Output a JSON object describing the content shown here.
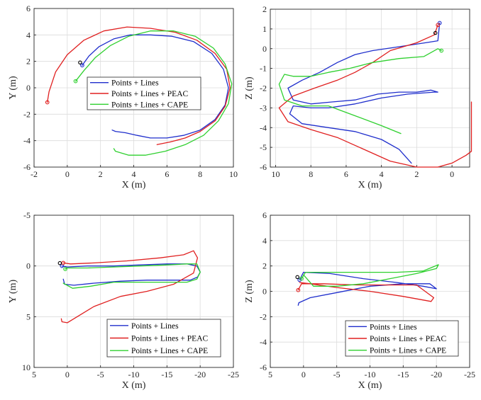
{
  "colors": {
    "blue": "#1f2ecc",
    "red": "#e02020",
    "green": "#2fd02f",
    "black": "#000000"
  },
  "chart_data": [
    {
      "type": "line",
      "id": "top-left",
      "xlabel": "X (m)",
      "ylabel": "Y (m)",
      "xlim": [
        -2,
        10
      ],
      "ylim": [
        -6,
        6
      ],
      "xticks": [
        -2,
        0,
        2,
        4,
        6,
        8,
        10
      ],
      "yticks": [
        -6,
        -4,
        -2,
        0,
        2,
        4,
        6
      ],
      "x_reversed": false,
      "y_reversed": false,
      "grid": true,
      "legend": "center",
      "series": [
        {
          "name": "Points + Lines",
          "color": "#1f2ecc",
          "x": [
            0.9,
            1.3,
            1.9,
            2.8,
            3.8,
            5.0,
            6.3,
            7.6,
            8.7,
            9.4,
            9.7,
            9.5,
            8.9,
            8.0,
            7.0,
            6.0,
            5.0,
            4.2,
            3.5,
            2.9,
            2.7
          ],
          "y": [
            1.7,
            2.4,
            3.1,
            3.7,
            4.0,
            4.0,
            3.9,
            3.5,
            2.6,
            1.4,
            0.0,
            -1.3,
            -2.4,
            -3.2,
            -3.6,
            -3.8,
            -3.8,
            -3.6,
            -3.4,
            -3.3,
            -3.2
          ]
        },
        {
          "name": "Points + Lines + PEAC",
          "color": "#e02020",
          "x": [
            -1.2,
            -1.1,
            -0.7,
            0.0,
            1.0,
            2.2,
            3.6,
            5.0,
            6.5,
            7.8,
            8.9,
            9.6,
            9.8,
            9.5,
            8.9,
            8.0,
            7.1,
            6.2,
            5.4
          ],
          "y": [
            -1.1,
            -0.3,
            1.2,
            2.5,
            3.6,
            4.3,
            4.6,
            4.5,
            4.2,
            3.6,
            2.6,
            1.4,
            0.0,
            -1.4,
            -2.5,
            -3.3,
            -3.8,
            -4.1,
            -4.3
          ]
        },
        {
          "name": "Points + Lines + CAPE",
          "color": "#2fd02f",
          "x": [
            0.5,
            1.0,
            1.7,
            2.6,
            3.7,
            5.0,
            6.4,
            7.7,
            8.8,
            9.5,
            9.9,
            9.7,
            9.1,
            8.2,
            7.1,
            5.9,
            4.7,
            3.7,
            2.9,
            2.8
          ],
          "y": [
            0.5,
            1.3,
            2.3,
            3.2,
            3.9,
            4.3,
            4.3,
            3.9,
            3.0,
            1.8,
            0.3,
            -1.2,
            -2.5,
            -3.6,
            -4.3,
            -4.8,
            -5.1,
            -5.1,
            -4.8,
            -4.6
          ]
        }
      ]
    },
    {
      "type": "line",
      "id": "top-right",
      "xlabel": "X (m)",
      "ylabel": "Z (m)",
      "xlim": [
        -1,
        10.3
      ],
      "ylim": [
        -6,
        2
      ],
      "xticks": [
        10,
        8,
        6,
        4,
        2,
        0
      ],
      "yticks": [
        -6,
        -5,
        -4,
        -3,
        -2,
        -1,
        0,
        1,
        2
      ],
      "x_reversed": true,
      "y_reversed": false,
      "grid": true,
      "legend": "none",
      "series": [
        {
          "name": "Points + Lines",
          "color": "#1f2ecc",
          "x": [
            0.7,
            0.8,
            1.5,
            3.0,
            4.5,
            5.5,
            6.5,
            7.5,
            8.5,
            9.3,
            9.0,
            8.0,
            6.8,
            5.5,
            4.2,
            3.0,
            2.0,
            1.2,
            0.8,
            1.0,
            2.5,
            4.0,
            5.5,
            7.0,
            8.0,
            9.0,
            9.2,
            8.5,
            7.0,
            5.5,
            4.0,
            3.0,
            2.3
          ],
          "y": [
            1.3,
            0.4,
            0.3,
            0.1,
            -0.1,
            -0.3,
            -0.7,
            -1.2,
            -1.6,
            -2.0,
            -2.6,
            -2.8,
            -2.7,
            -2.6,
            -2.3,
            -2.2,
            -2.2,
            -2.1,
            -2.2,
            -2.2,
            -2.3,
            -2.5,
            -2.8,
            -3.0,
            -3.0,
            -2.9,
            -3.3,
            -3.8,
            -4.0,
            -4.2,
            -4.6,
            -5.1,
            -5.8
          ]
        },
        {
          "name": "Points + Lines + PEAC",
          "color": "#e02020",
          "x": [
            0.8,
            1.0,
            2.0,
            3.5,
            4.5,
            5.5,
            6.5,
            7.8,
            9.0,
            9.8,
            9.3,
            8.0,
            6.5,
            5.0,
            3.5,
            2.0,
            0.8,
            0.0,
            -0.8,
            -1.1,
            -1.1
          ],
          "y": [
            1.2,
            0.7,
            0.3,
            -0.1,
            -0.7,
            -1.2,
            -1.6,
            -2.0,
            -2.4,
            -3.0,
            -3.7,
            -4.1,
            -4.5,
            -5.1,
            -5.7,
            -6.0,
            -6.0,
            -5.8,
            -5.4,
            -5.2,
            -2.7
          ]
        },
        {
          "name": "Points + Lines + CAPE",
          "color": "#2fd02f",
          "x": [
            0.6,
            0.8,
            1.6,
            3.0,
            4.5,
            5.8,
            7.0,
            8.0,
            9.0,
            9.5,
            9.8,
            9.5,
            8.5,
            7.0,
            5.5,
            4.0,
            2.9
          ],
          "y": [
            -0.1,
            0.0,
            -0.4,
            -0.5,
            -0.7,
            -1.0,
            -1.2,
            -1.4,
            -1.4,
            -1.3,
            -1.8,
            -2.6,
            -2.9,
            -2.9,
            -3.4,
            -3.9,
            -4.3
          ]
        }
      ]
    },
    {
      "type": "line",
      "id": "bottom-left",
      "xlabel": "X (m)",
      "ylabel": "Y (m)",
      "xlim": [
        -25,
        5
      ],
      "ylim": [
        -5,
        10
      ],
      "xticks": [
        5,
        0,
        -5,
        -10,
        -15,
        -20,
        -25
      ],
      "yticks": [
        -5,
        0,
        5,
        10
      ],
      "x_reversed": true,
      "y_reversed": true,
      "grid": true,
      "legend": "bottom-right",
      "series": [
        {
          "name": "Points + Lines",
          "color": "#1f2ecc",
          "x": [
            0.8,
            0.0,
            -3.0,
            -7.0,
            -11.0,
            -15.0,
            -18.0,
            -19.5,
            -20.0,
            -19.6,
            -18.5,
            -16.0,
            -12.0,
            -8.0,
            -4.0,
            -1.0,
            0.4,
            0.6
          ],
          "y": [
            0.0,
            0.1,
            0.0,
            0.0,
            -0.1,
            -0.2,
            -0.2,
            0.0,
            0.6,
            1.1,
            1.4,
            1.4,
            1.4,
            1.5,
            1.7,
            1.9,
            1.8,
            1.3
          ]
        },
        {
          "name": "Points + Lines + PEAC",
          "color": "#e02020",
          "x": [
            0.6,
            -0.5,
            -4.0,
            -9.0,
            -14.0,
            -17.5,
            -19.0,
            -19.6,
            -19.0,
            -16.0,
            -12.0,
            -8.0,
            -4.0,
            -1.5,
            0.0,
            0.8,
            0.9
          ],
          "y": [
            -0.3,
            -0.2,
            -0.3,
            -0.5,
            -0.8,
            -1.1,
            -1.5,
            -0.8,
            0.7,
            1.8,
            2.5,
            3.0,
            4.0,
            5.0,
            5.6,
            5.5,
            5.2
          ]
        },
        {
          "name": "Points + Lines + CAPE",
          "color": "#2fd02f",
          "x": [
            0.3,
            0.0,
            -3.0,
            -7.0,
            -11.0,
            -15.0,
            -18.0,
            -19.5,
            -20.0,
            -19.5,
            -18.0,
            -15.0,
            -11.0,
            -7.0,
            -3.5,
            -0.8,
            0.6
          ],
          "y": [
            0.3,
            0.2,
            0.2,
            0.1,
            0.0,
            -0.1,
            -0.2,
            -0.2,
            0.6,
            1.3,
            1.6,
            1.6,
            1.6,
            1.6,
            2.0,
            2.2,
            1.7
          ]
        }
      ]
    },
    {
      "type": "line",
      "id": "bottom-right",
      "xlabel": "X (m)",
      "ylabel": "Z (m)",
      "xlim": [
        -25,
        5
      ],
      "ylim": [
        -6,
        6
      ],
      "xticks": [
        5,
        0,
        -5,
        -10,
        -15,
        -20,
        -25
      ],
      "yticks": [
        -6,
        -4,
        -2,
        0,
        2,
        4,
        6
      ],
      "x_reversed": true,
      "y_reversed": false,
      "grid": true,
      "legend": "bottom-right",
      "series": [
        {
          "name": "Points + Lines",
          "color": "#1f2ecc",
          "x": [
            0.6,
            0.0,
            -4.0,
            -9.0,
            -14.0,
            -18.0,
            -20.0,
            -19.0,
            -15.0,
            -10.0,
            -5.0,
            -1.0,
            0.7,
            0.8
          ],
          "y": [
            0.9,
            1.5,
            1.4,
            1.0,
            0.7,
            0.4,
            0.2,
            0.6,
            0.6,
            0.4,
            -0.1,
            -0.5,
            -0.9,
            -1.1
          ]
        },
        {
          "name": "Points + Lines + PEAC",
          "color": "#e02020",
          "x": [
            0.8,
            0.3,
            -3.0,
            -8.0,
            -13.0,
            -17.0,
            -19.6,
            -19.2,
            -15.0,
            -10.0,
            -5.0,
            -1.0,
            0.6
          ],
          "y": [
            0.1,
            0.6,
            0.6,
            0.5,
            0.5,
            0.5,
            -0.5,
            -0.8,
            -0.4,
            0.0,
            0.3,
            0.6,
            0.7
          ]
        },
        {
          "name": "Points + Lines + CAPE",
          "color": "#2fd02f",
          "x": [
            0.3,
            -0.3,
            -4.0,
            -9.0,
            -14.0,
            -18.0,
            -20.3,
            -20.0,
            -17.0,
            -13.0,
            -9.0,
            -5.0,
            -1.5,
            0.0
          ],
          "y": [
            1.0,
            1.5,
            1.5,
            1.5,
            1.5,
            1.6,
            2.1,
            1.8,
            1.4,
            1.0,
            0.6,
            0.4,
            0.4,
            1.3
          ]
        }
      ]
    }
  ]
}
